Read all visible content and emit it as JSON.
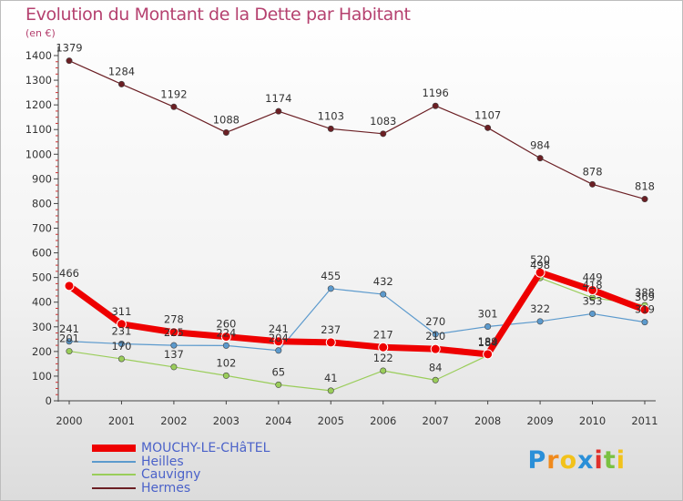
{
  "chart_data": {
    "type": "line",
    "title": "Evolution du Montant de la Dette par Habitant",
    "unit_label": "(en €)",
    "x": [
      "2000",
      "2001",
      "2002",
      "2003",
      "2004",
      "2005",
      "2006",
      "2007",
      "2008",
      "2009",
      "2010",
      "2011"
    ],
    "ylim": [
      0,
      1400
    ],
    "yticks": [
      0,
      100,
      200,
      300,
      400,
      500,
      600,
      700,
      800,
      900,
      1000,
      1100,
      1200,
      1300,
      1400
    ],
    "grid": false,
    "legend_position": "bottom-left",
    "series": [
      {
        "name": "Hermes",
        "color": "#6b1f24",
        "width": 1.2,
        "values": [
          1379,
          1284,
          1192,
          1088,
          1174,
          1103,
          1083,
          1196,
          1107,
          984,
          878,
          818
        ]
      },
      {
        "name": "Cauvigny",
        "color": "#9acd5a",
        "width": 1.2,
        "values": [
          201,
          170,
          137,
          102,
          65,
          41,
          122,
          84,
          184,
          498,
          418,
          388
        ]
      },
      {
        "name": "Heilles",
        "color": "#5c9acd",
        "width": 1.2,
        "values": [
          241,
          231,
          225,
          224,
          204,
          455,
          432,
          270,
          301,
          322,
          353,
          319
        ]
      },
      {
        "name": "MOUCHY-LE-CHâTEL",
        "color": "#ee0000",
        "width": 7,
        "values": [
          466,
          311,
          278,
          260,
          241,
          237,
          217,
          210,
          189,
          520,
          449,
          369
        ]
      }
    ],
    "data_labels": {
      "Hermes": [
        "1379",
        "1284",
        "1192",
        "1088",
        "1174",
        "1103",
        "1083",
        "1196",
        "1107",
        "984",
        "878",
        "818"
      ],
      "Cauvigny": [
        "201",
        "170",
        "137",
        "102",
        "65",
        "41",
        "122",
        "84",
        "184",
        "498",
        "418",
        "388"
      ],
      "Heilles": [
        "241",
        "231",
        "225",
        "224",
        "204",
        "455",
        "432",
        "270",
        "301",
        "322",
        "353",
        "319"
      ],
      "MOUCHY-LE-CHâTEL": [
        "466",
        "311",
        "278",
        "260",
        "241",
        "237",
        "217",
        "210",
        "189",
        "520",
        "449",
        "369"
      ]
    }
  },
  "legend": [
    {
      "label": "MOUCHY-LE-CHâTEL",
      "color": "#ee0000",
      "label_color": "#4b62c9"
    },
    {
      "label": "Heilles",
      "color": "#5c9acd",
      "label_color": "#4b62c9"
    },
    {
      "label": "Cauvigny",
      "color": "#9acd5a",
      "label_color": "#4b62c9"
    },
    {
      "label": "Hermes",
      "color": "#6b1f24",
      "label_color": "#4b62c9"
    }
  ],
  "logo": {
    "letters": [
      "P",
      "r",
      "o",
      "x",
      "i",
      "t",
      "i"
    ],
    "colors": [
      "#2a8fd8",
      "#f08a1c",
      "#f2c21b",
      "#2a8fd8",
      "#e0302b",
      "#7ac142",
      "#f2c21b"
    ]
  }
}
